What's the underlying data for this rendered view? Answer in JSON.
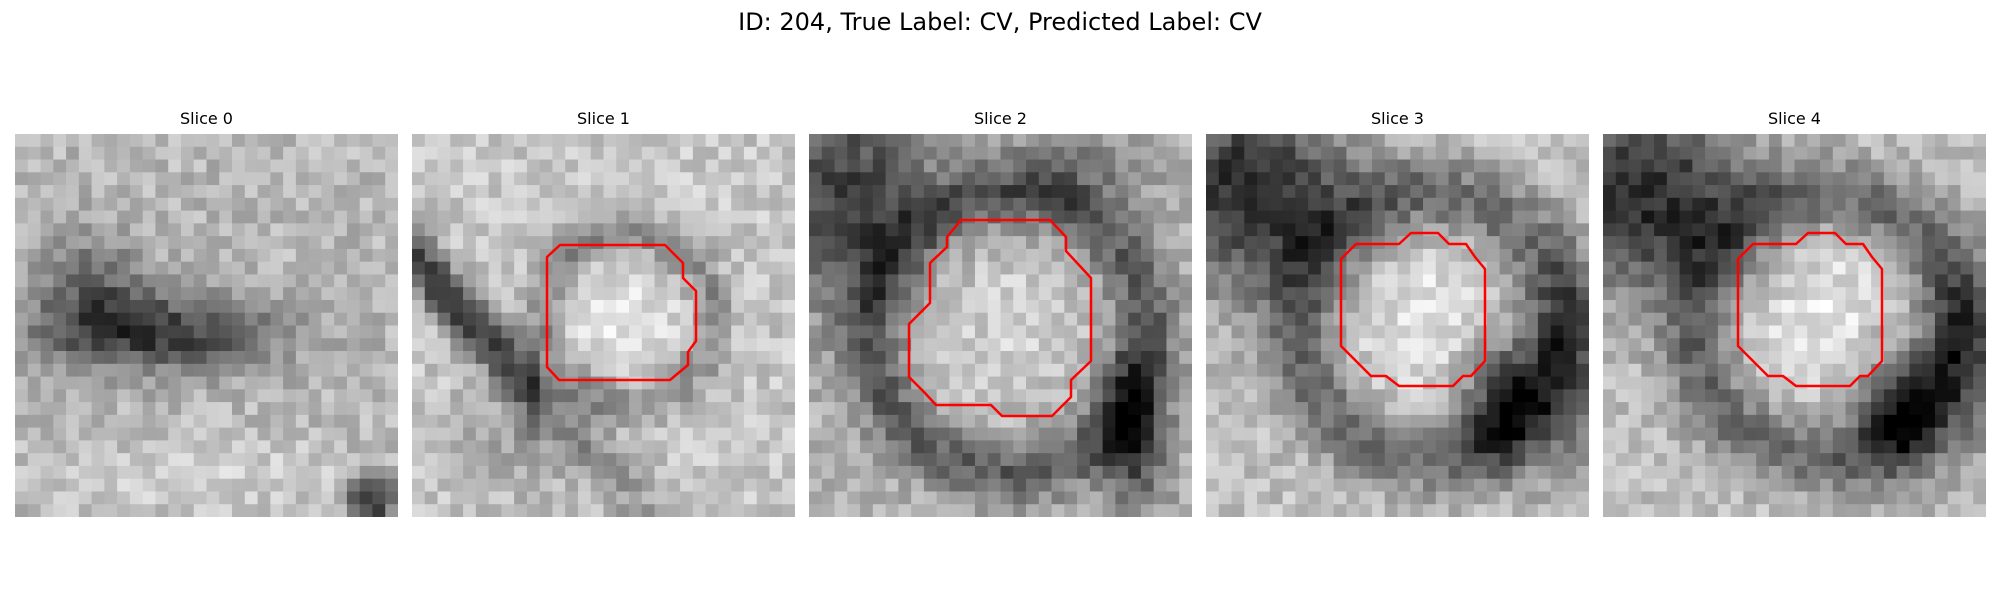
{
  "figure": {
    "title": "ID: 204, True Label: CV, Predicted Label: CV",
    "colormap": "gray",
    "contour_color": "#ff0000",
    "grid_resolution": 30
  },
  "slices": [
    {
      "label": "Slice 0",
      "has_contour": false
    },
    {
      "label": "Slice 1",
      "has_contour": true
    },
    {
      "label": "Slice 2",
      "has_contour": true
    },
    {
      "label": "Slice 3",
      "has_contour": true
    },
    {
      "label": "Slice 4",
      "has_contour": true
    }
  ]
}
